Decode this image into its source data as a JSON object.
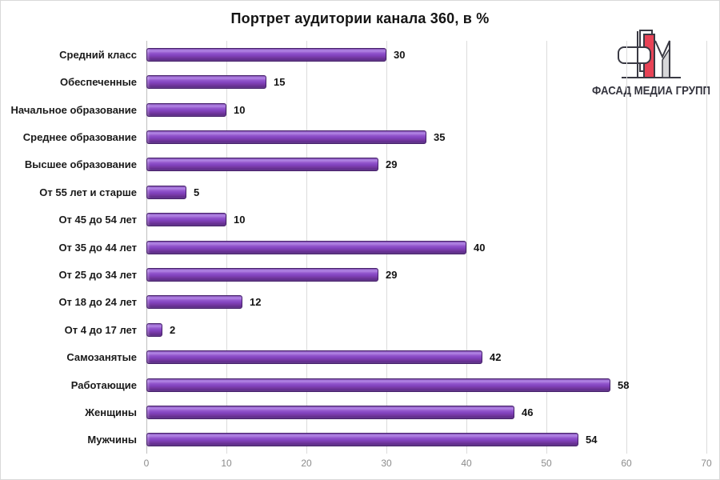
{
  "title": "Портрет аудитории канала 360, в %",
  "logo": {
    "text": "ФАСАД МЕДИА ГРУПП",
    "accent_color": "#e84356",
    "gray_color": "#d7d7d9",
    "line_color": "#3a3a44"
  },
  "chart_data": {
    "type": "bar",
    "orientation": "horizontal",
    "title": "Портрет аудитории канала 360, в %",
    "categories": [
      "Средний класс",
      "Обеспеченные",
      "Начальное образование",
      "Среднее образование",
      "Высшее образование",
      "От 55 лет и старше",
      "От 45 до 54 лет",
      "От 35 до 44 лет",
      "От 25 до 34 лет",
      "От 18 до 24 лет",
      "От 4 до 17 лет",
      "Самозанятые",
      "Работающие",
      "Женщины",
      "Мужчины"
    ],
    "values": [
      30,
      15,
      10,
      35,
      29,
      5,
      10,
      40,
      29,
      12,
      2,
      42,
      58,
      46,
      54
    ],
    "xlabel": "",
    "ylabel": "",
    "xlim": [
      0,
      70
    ],
    "xticks": [
      0,
      10,
      20,
      30,
      40,
      50,
      60,
      70
    ],
    "grid": true,
    "legend": false,
    "bar_color": "#8243bf",
    "bar_border_color": "#45206b",
    "value_label_color": "#141414",
    "tick_label_color": "#8c8c8c",
    "gridline_color": "#dcdcdc"
  }
}
